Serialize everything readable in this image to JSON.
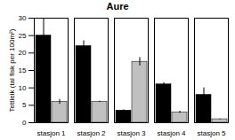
{
  "chart_data": {
    "type": "bar",
    "title": "Aure",
    "y_label": "Tettleik (tal fisk per 100m²)",
    "categories": [
      "stasjon 1",
      "stasjon 2",
      "stasjon 3",
      "stasjon 4",
      "stasjon 5"
    ],
    "series": [
      {
        "color": "#000000",
        "values": [
          25,
          22,
          3.5,
          11,
          8
        ],
        "errors": [
          5,
          1.5,
          0.2,
          0.5,
          2
        ]
      },
      {
        "color": "#c0c0c0",
        "values": [
          6,
          6,
          17.5,
          3,
          1
        ],
        "errors": [
          0.7,
          0.2,
          1.2,
          0.3,
          0.1
        ]
      }
    ],
    "ylim": [
      0,
      30
    ],
    "yticks": [
      0,
      5,
      10,
      15,
      20,
      25,
      30
    ],
    "grid": false
  }
}
